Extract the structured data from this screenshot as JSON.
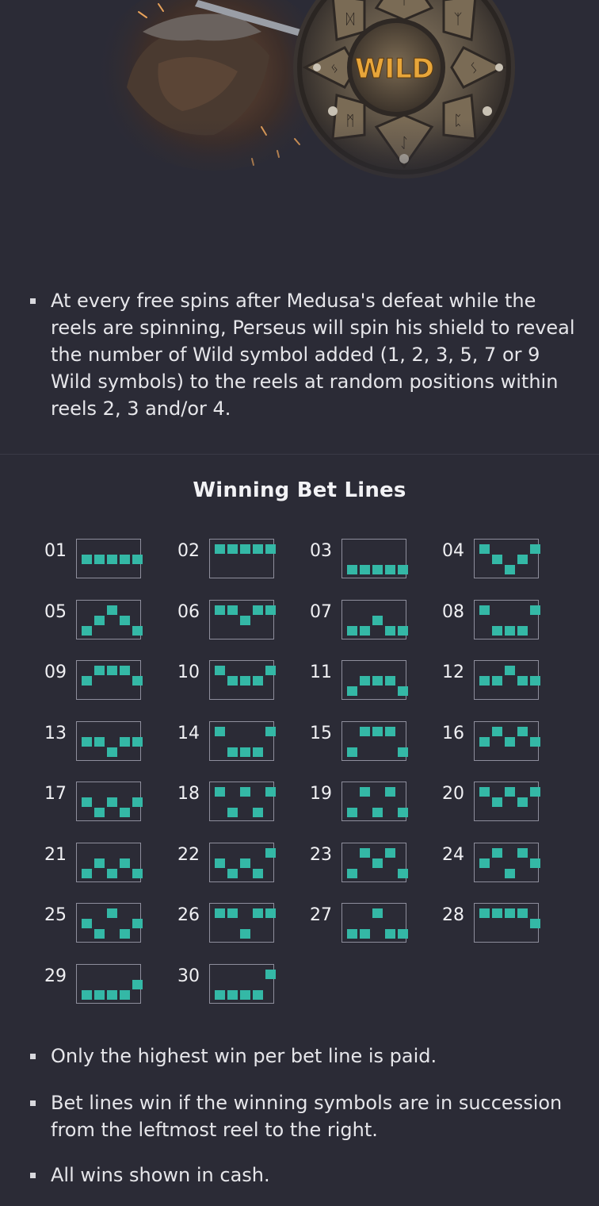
{
  "hero": {
    "shield_text": "WILD",
    "shield_runes": [
      "ᛏ",
      "ᛉ",
      "ᛊ",
      "ᛈ",
      "ᛇ",
      "ᛗ",
      "ᛃ",
      "ᛞ",
      "ᛟ",
      "ᛚ"
    ]
  },
  "intro_bullet": "At every free spins after Medusa's defeat while the reels are spinning, Perseus will spin his shield to reveal the number of Wild symbol added (1, 2, 3, 5, 7 or 9 Wild symbols) to the reels at random positions within reels 2, 3 and/or 4.",
  "section_title": "Winning Bet Lines",
  "bet_lines": [
    {
      "number": "01",
      "rows": [
        1,
        1,
        1,
        1,
        1
      ]
    },
    {
      "number": "02",
      "rows": [
        0,
        0,
        0,
        0,
        0
      ]
    },
    {
      "number": "03",
      "rows": [
        2,
        2,
        2,
        2,
        2
      ]
    },
    {
      "number": "04",
      "rows": [
        0,
        1,
        2,
        1,
        0
      ]
    },
    {
      "number": "05",
      "rows": [
        2,
        1,
        0,
        1,
        2
      ]
    },
    {
      "number": "06",
      "rows": [
        0,
        0,
        1,
        0,
        0
      ]
    },
    {
      "number": "07",
      "rows": [
        2,
        2,
        1,
        2,
        2
      ]
    },
    {
      "number": "08",
      "rows": [
        0,
        2,
        2,
        2,
        0
      ]
    },
    {
      "number": "09",
      "rows": [
        1,
        0,
        0,
        0,
        1
      ]
    },
    {
      "number": "10",
      "rows": [
        0,
        1,
        1,
        1,
        0
      ]
    },
    {
      "number": "11",
      "rows": [
        2,
        1,
        1,
        1,
        2
      ]
    },
    {
      "number": "12",
      "rows": [
        1,
        1,
        0,
        1,
        1
      ]
    },
    {
      "number": "13",
      "rows": [
        1,
        1,
        2,
        1,
        1
      ]
    },
    {
      "number": "14",
      "rows": [
        0,
        2,
        2,
        2,
        0
      ]
    },
    {
      "number": "15",
      "rows": [
        2,
        0,
        0,
        0,
        2
      ]
    },
    {
      "number": "16",
      "rows": [
        1,
        0,
        1,
        0,
        1
      ]
    },
    {
      "number": "17",
      "rows": [
        1,
        2,
        1,
        2,
        1
      ]
    },
    {
      "number": "18",
      "rows": [
        0,
        2,
        0,
        2,
        0
      ]
    },
    {
      "number": "19",
      "rows": [
        2,
        0,
        2,
        0,
        2
      ]
    },
    {
      "number": "20",
      "rows": [
        0,
        1,
        0,
        1,
        0
      ]
    },
    {
      "number": "21",
      "rows": [
        2,
        1,
        2,
        1,
        2
      ]
    },
    {
      "number": "22",
      "rows": [
        1,
        2,
        1,
        2,
        0
      ]
    },
    {
      "number": "23",
      "rows": [
        2,
        0,
        1,
        0,
        2
      ]
    },
    {
      "number": "24",
      "rows": [
        1,
        0,
        2,
        0,
        1
      ]
    },
    {
      "number": "25",
      "rows": [
        1,
        2,
        0,
        2,
        1
      ]
    },
    {
      "number": "26",
      "rows": [
        0,
        0,
        2,
        0,
        0
      ]
    },
    {
      "number": "27",
      "rows": [
        2,
        2,
        0,
        2,
        2
      ]
    },
    {
      "number": "28",
      "rows": [
        0,
        0,
        0,
        0,
        1
      ]
    },
    {
      "number": "29",
      "rows": [
        2,
        2,
        2,
        2,
        1
      ]
    },
    {
      "number": "30",
      "rows": [
        2,
        2,
        2,
        2,
        0
      ]
    }
  ],
  "footer_bullets": [
    "Only the highest win per bet line is paid.",
    "Bet lines win if the winning symbols are in succession from the leftmost reel to the right.",
    "All wins shown in cash."
  ],
  "colors": {
    "background": "#2b2b36",
    "line_cell": "#34b8a6",
    "box_border": "#8e8e9c",
    "text": "#e6e6ea"
  }
}
